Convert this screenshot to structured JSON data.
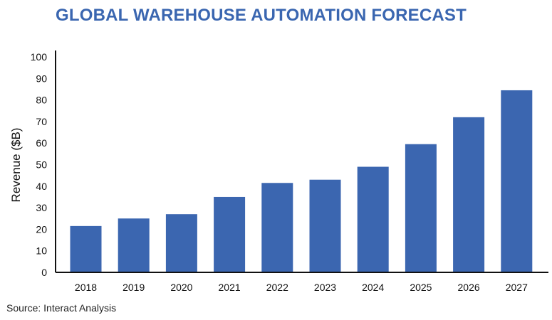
{
  "chart_data": {
    "type": "bar",
    "title": "GLOBAL WAREHOUSE AUTOMATION FORECAST",
    "source": "Source: Interact Analysis",
    "xlabel": "",
    "ylabel": "Revenue ($B)",
    "ylim": [
      0,
      100
    ],
    "yticks": [
      "0",
      "10",
      "20",
      "30",
      "40",
      "50",
      "60",
      "70",
      "80",
      "90",
      "100"
    ],
    "categories": [
      "2018",
      "2019",
      "2020",
      "2021",
      "2022",
      "2023",
      "2024",
      "2025",
      "2026",
      "2027"
    ],
    "values": [
      21.5,
      25,
      27,
      35,
      41.5,
      43,
      49,
      59.5,
      72,
      84.5
    ],
    "bar_color": "#3b66b0",
    "grid": false
  }
}
